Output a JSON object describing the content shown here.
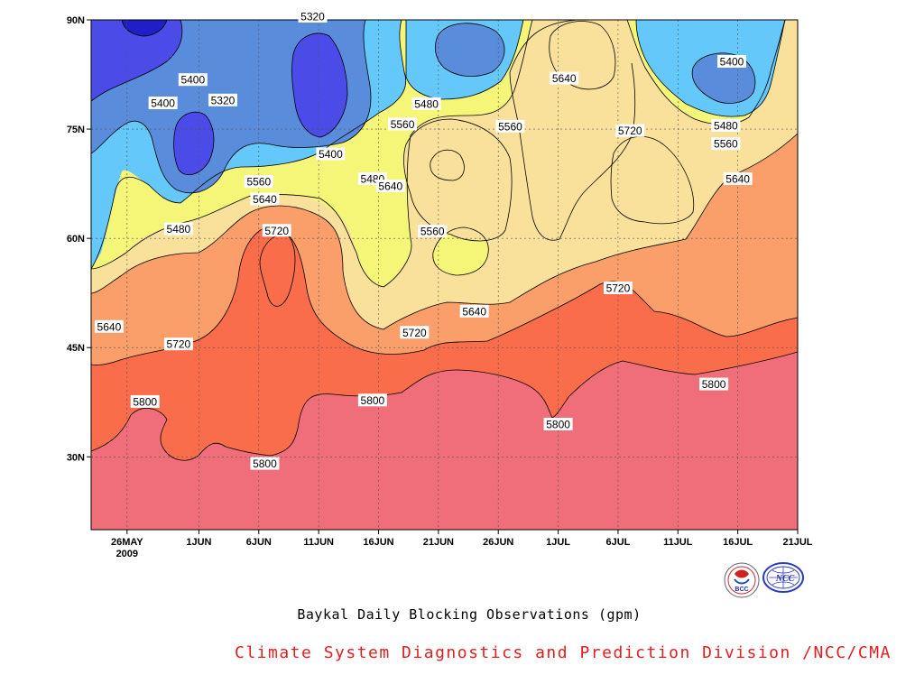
{
  "chart_data": {
    "type": "heatmap",
    "title": "Baykal Daily Blocking Observations (gpm)",
    "y_ticks": [
      "90N",
      "75N",
      "60N",
      "45N",
      "30N"
    ],
    "y_tick_values": [
      90,
      75,
      60,
      45,
      30
    ],
    "ylim": [
      20,
      90
    ],
    "x_ticks": [
      "26MAY",
      "1JUN",
      "6JUN",
      "11JUN",
      "16JUN",
      "21JUN",
      "26JUN",
      "1JUL",
      "6JUL",
      "11JUL",
      "16JUL",
      "21JUL"
    ],
    "x_tick_days": [
      0,
      6,
      11,
      16,
      21,
      26,
      31,
      36,
      41,
      46,
      51,
      56
    ],
    "xlim_days": [
      -3,
      56
    ],
    "year_label": "2009",
    "levels": [
      5320,
      5400,
      5480,
      5560,
      5640,
      5720,
      5800
    ],
    "band_colors": [
      "#1f1fc8",
      "#4b4be8",
      "#5a8cdc",
      "#64c8fa",
      "#f5f578",
      "#fae19b",
      "#fa9f6a",
      "#fa6d4a",
      "#f06e7a"
    ],
    "contour_labels": [
      {
        "text": "5320",
        "day": 15.5,
        "lat": 90.5
      },
      {
        "text": "5400",
        "day": 50.5,
        "lat": 84.3
      },
      {
        "text": "5400",
        "day": 3,
        "lat": 78.6
      },
      {
        "text": "5400",
        "day": 5.5,
        "lat": 81.8
      },
      {
        "text": "5320",
        "day": 8,
        "lat": 79.0
      },
      {
        "text": "5400",
        "day": 17,
        "lat": 71.6
      },
      {
        "text": "5480",
        "day": 25,
        "lat": 78.5
      },
      {
        "text": "5640",
        "day": 36.5,
        "lat": 82.0
      },
      {
        "text": "5560",
        "day": 23,
        "lat": 75.7
      },
      {
        "text": "5560",
        "day": 32,
        "lat": 75.4
      },
      {
        "text": "5720",
        "day": 42,
        "lat": 74.8
      },
      {
        "text": "5480",
        "day": 50,
        "lat": 75.5
      },
      {
        "text": "5560",
        "day": 50,
        "lat": 73.0
      },
      {
        "text": "5640",
        "day": 51,
        "lat": 68.2
      },
      {
        "text": "5480",
        "day": 20.5,
        "lat": 68.2
      },
      {
        "text": "5640",
        "day": 22,
        "lat": 67.2
      },
      {
        "text": "5560",
        "day": 11,
        "lat": 67.8
      },
      {
        "text": "5640",
        "day": 11.5,
        "lat": 65.4
      },
      {
        "text": "5480",
        "day": 4.3,
        "lat": 61.3
      },
      {
        "text": "5720",
        "day": 12.5,
        "lat": 61.1
      },
      {
        "text": "5560",
        "day": 25.5,
        "lat": 61.0
      },
      {
        "text": "5720",
        "day": 41,
        "lat": 53.2
      },
      {
        "text": "5640",
        "day": 29,
        "lat": 50.0
      },
      {
        "text": "5720",
        "day": 24,
        "lat": 47.1
      },
      {
        "text": "5640",
        "day": -1.5,
        "lat": 47.9
      },
      {
        "text": "5720",
        "day": 4.3,
        "lat": 45.5
      },
      {
        "text": "5800",
        "day": 1.5,
        "lat": 37.6
      },
      {
        "text": "5800",
        "day": 20.5,
        "lat": 37.8
      },
      {
        "text": "5800",
        "day": 36,
        "lat": 34.5
      },
      {
        "text": "5800",
        "day": 49,
        "lat": 40.0
      },
      {
        "text": "5800",
        "day": 11.5,
        "lat": 29.1
      }
    ]
  },
  "caption": {
    "title": "Baykal Daily Blocking Observations (gpm)",
    "credit": "Climate System Diagnostics and Prediction Division /NCC/CMA"
  },
  "logos": [
    {
      "name": "bcc-logo",
      "text": "BCC"
    },
    {
      "name": "ncc-logo",
      "text": "NCC"
    }
  ]
}
